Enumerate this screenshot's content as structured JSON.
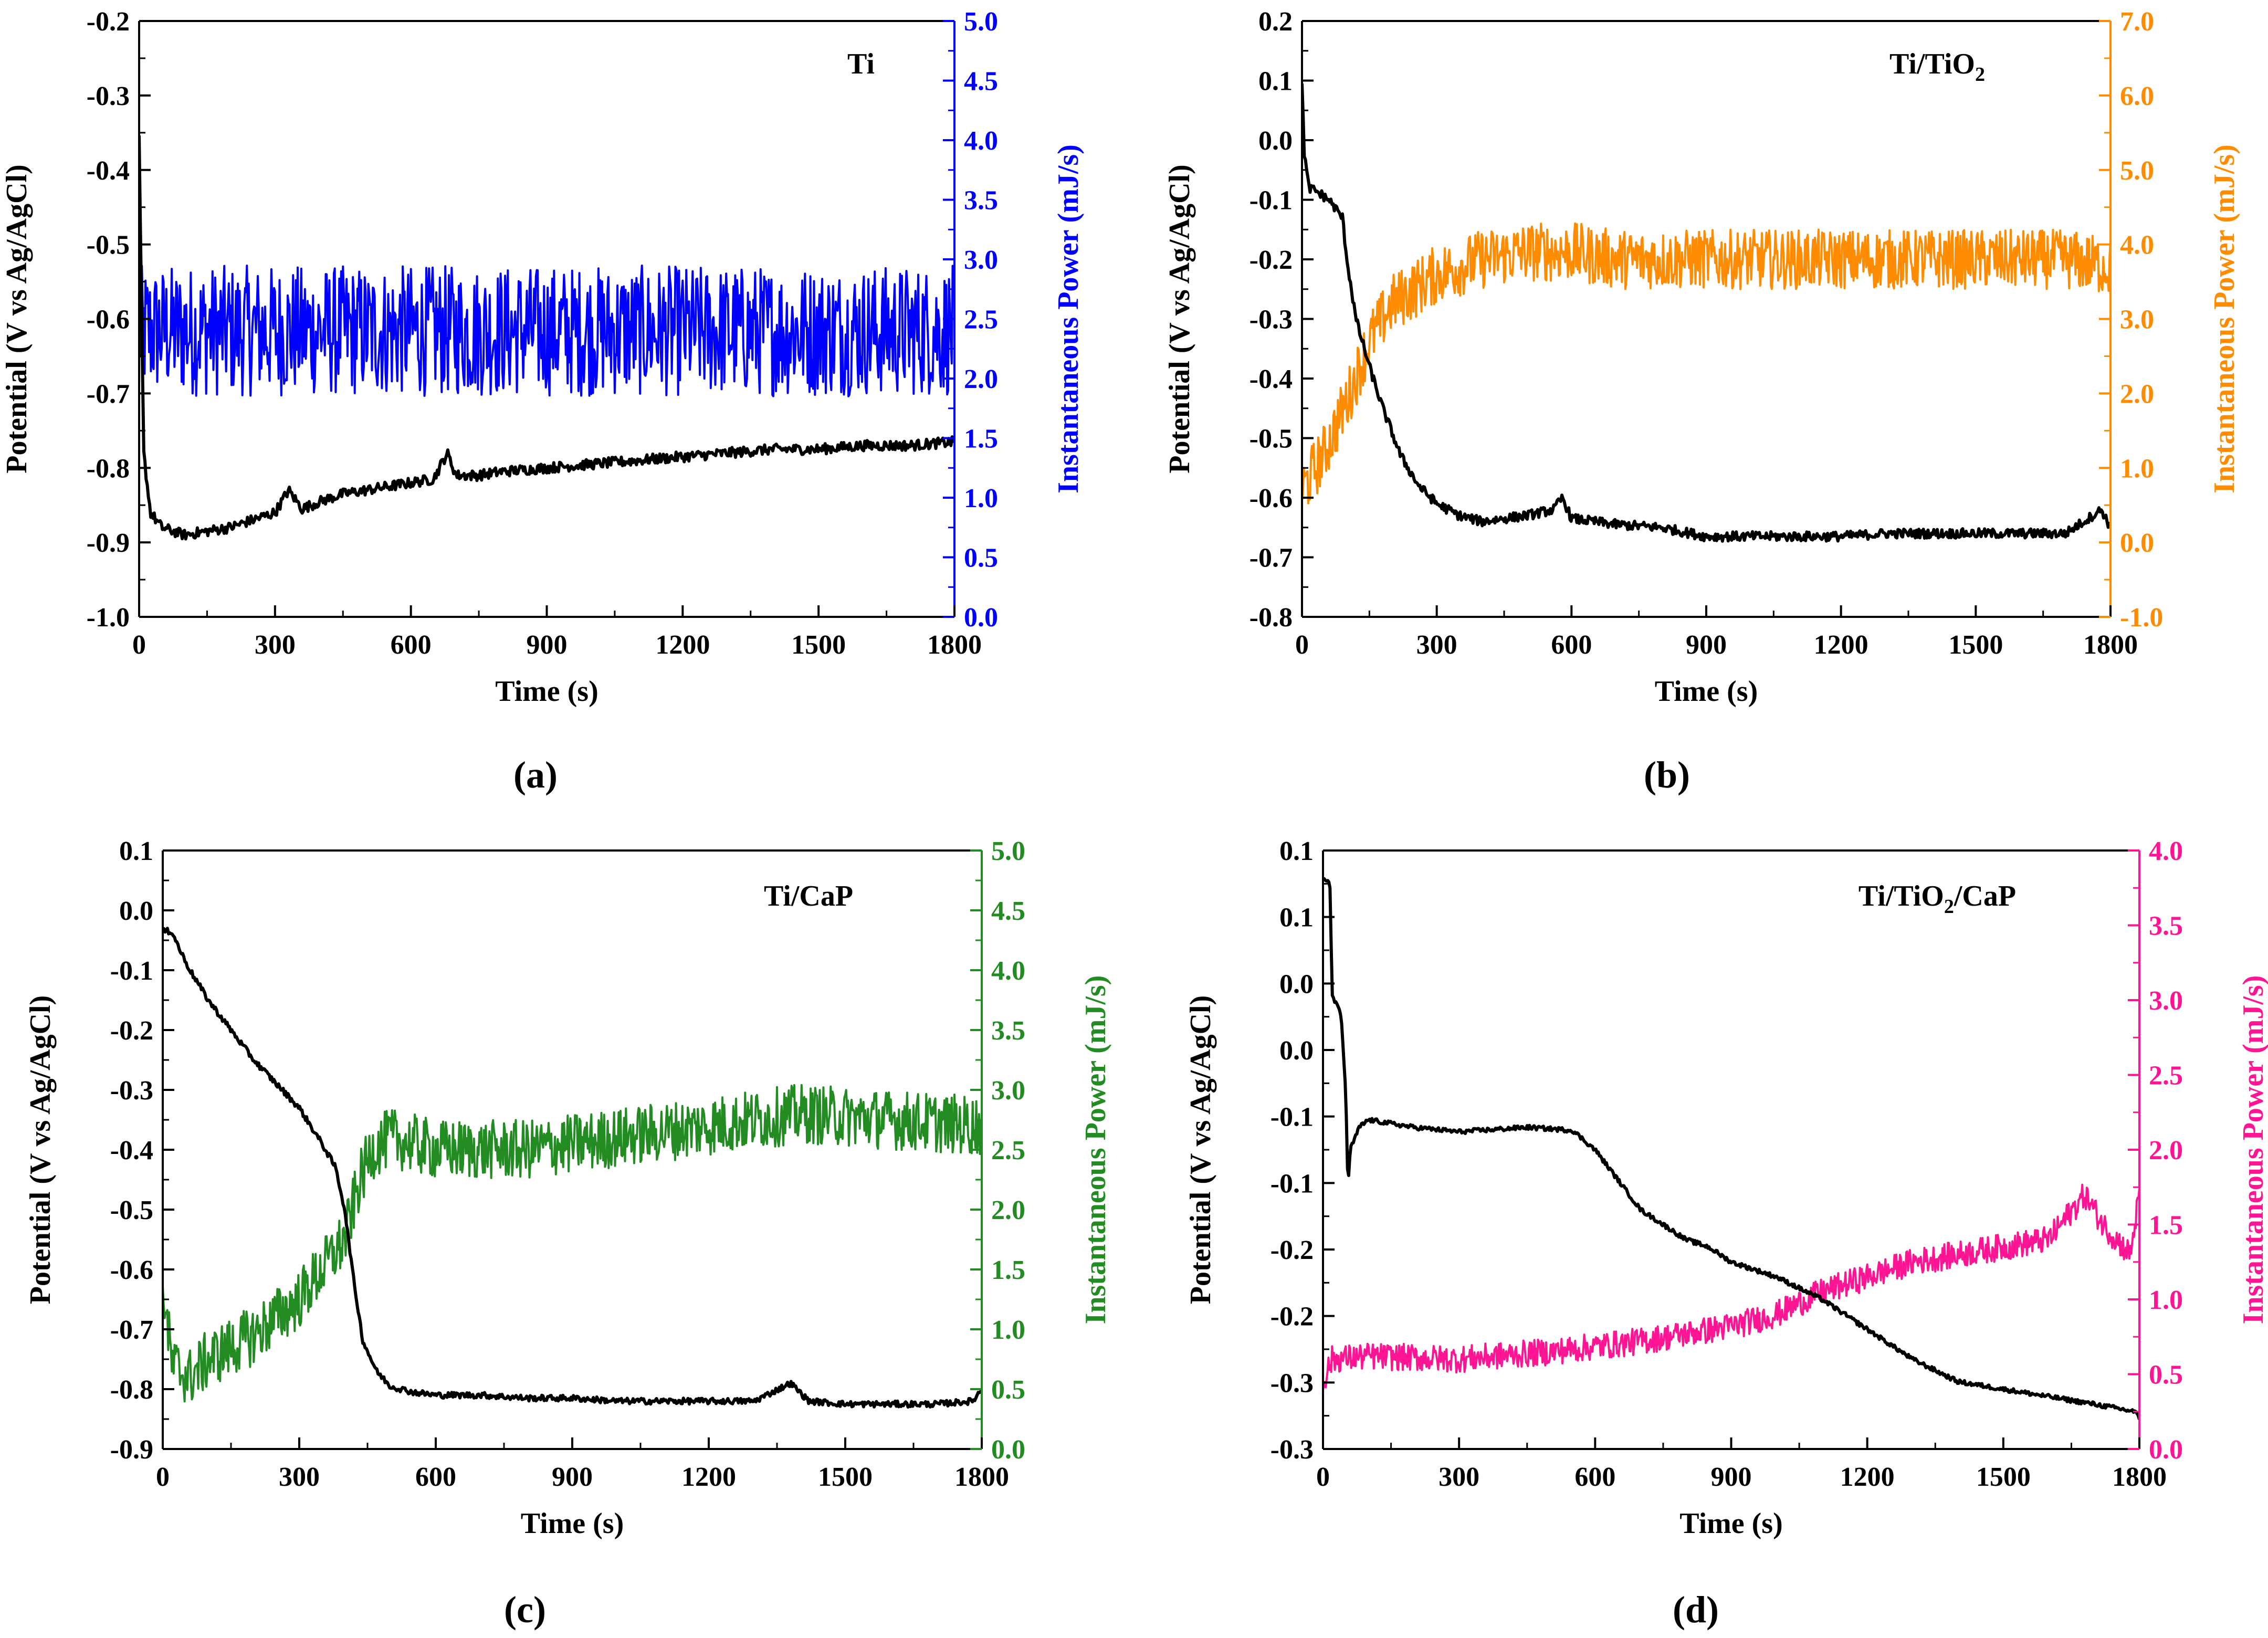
{
  "chart_data": [
    {
      "panel": "(a)",
      "type": "line",
      "sample_label": "Ti",
      "xlabel": "Time (s)",
      "ylabel_left": "Potential (V vs Ag/AgCl)",
      "ylabel_right": "Instantaneous Power (mJ/s)",
      "xlim": [
        0,
        1800
      ],
      "xticks": [
        "0",
        "300",
        "600",
        "900",
        "1200",
        "1500",
        "1800"
      ],
      "ylim_left": [
        -1.0,
        -0.2
      ],
      "yticks_left": [
        "-1.0",
        "-0.9",
        "-0.8",
        "-0.7",
        "-0.6",
        "-0.5",
        "-0.4",
        "-0.3",
        "-0.2"
      ],
      "ylim_right": [
        0.0,
        5.0
      ],
      "yticks_right": [
        "0.0",
        "0.5",
        "1.0",
        "1.5",
        "2.0",
        "2.5",
        "3.0",
        "3.5",
        "4.0",
        "4.5",
        "5.0"
      ],
      "right_color": "#0000ff",
      "series": [
        {
          "axis": "left",
          "color": "#000000",
          "x": [
            0,
            10,
            25,
            50,
            100,
            150,
            200,
            250,
            300,
            330,
            360,
            400,
            450,
            500,
            550,
            600,
            650,
            680,
            700,
            750,
            800,
            900,
            1000,
            1100,
            1200,
            1300,
            1400,
            1500,
            1600,
            1700,
            1800
          ],
          "y": [
            -0.36,
            -0.78,
            -0.86,
            -0.88,
            -0.89,
            -0.885,
            -0.88,
            -0.87,
            -0.86,
            -0.83,
            -0.855,
            -0.845,
            -0.835,
            -0.83,
            -0.825,
            -0.82,
            -0.815,
            -0.78,
            -0.81,
            -0.81,
            -0.805,
            -0.8,
            -0.795,
            -0.79,
            -0.785,
            -0.78,
            -0.775,
            -0.775,
            -0.77,
            -0.77,
            -0.765
          ],
          "noise": 0.007
        },
        {
          "axis": "right",
          "color": "#0000ff",
          "x": [
            0,
            100,
            300,
            600,
            900,
            1200,
            1500,
            1800
          ],
          "y": [
            2.4,
            2.4,
            2.4,
            2.4,
            2.4,
            2.4,
            2.4,
            2.4
          ],
          "noise": 0.55
        }
      ]
    },
    {
      "panel": "(b)",
      "type": "line",
      "sample_label": "Ti/TiO",
      "sample_sub": "2",
      "xlabel": "Time (s)",
      "ylabel_left": "Potential (V vs Ag/AgCl)",
      "ylabel_right": "Instantaneous Power (mJ/s)",
      "xlim": [
        0,
        1800
      ],
      "xticks": [
        "0",
        "300",
        "600",
        "900",
        "1200",
        "1500",
        "1800"
      ],
      "ylim_left": [
        -0.8,
        0.2
      ],
      "yticks_left": [
        "-0.8",
        "-0.7",
        "-0.6",
        "-0.5",
        "-0.4",
        "-0.3",
        "-0.2",
        "-0.1",
        "0.0",
        "0.1",
        "0.2"
      ],
      "ylim_right": [
        -1.0,
        7.0
      ],
      "yticks_right": [
        "-1.0",
        "0.0",
        "1.0",
        "2.0",
        "3.0",
        "4.0",
        "5.0",
        "6.0",
        "7.0"
      ],
      "right_color": "#ff8c00",
      "series": [
        {
          "axis": "left",
          "color": "#000000",
          "x": [
            0,
            5,
            15,
            30,
            60,
            90,
            100,
            120,
            150,
            180,
            220,
            260,
            300,
            350,
            400,
            500,
            560,
            580,
            600,
            700,
            800,
            900,
            1000,
            1100,
            1200,
            1300,
            1400,
            1500,
            1600,
            1700,
            1780,
            1800
          ],
          "y": [
            0.1,
            -0.02,
            -0.08,
            -0.085,
            -0.1,
            -0.13,
            -0.2,
            -0.3,
            -0.38,
            -0.45,
            -0.53,
            -0.58,
            -0.61,
            -0.63,
            -0.64,
            -0.63,
            -0.62,
            -0.6,
            -0.635,
            -0.645,
            -0.65,
            -0.665,
            -0.665,
            -0.665,
            -0.665,
            -0.66,
            -0.66,
            -0.66,
            -0.66,
            -0.66,
            -0.62,
            -0.65
          ],
          "noise": 0.008
        },
        {
          "axis": "right",
          "color": "#ff8c00",
          "x": [
            0,
            50,
            100,
            150,
            200,
            300,
            400,
            500,
            600,
            700,
            800,
            900,
            1000,
            1100,
            1200,
            1300,
            1400,
            1500,
            1600,
            1700,
            1800
          ],
          "y": [
            0.7,
            1.2,
            1.9,
            2.7,
            3.2,
            3.6,
            3.8,
            3.9,
            3.9,
            3.8,
            3.8,
            3.8,
            3.8,
            3.8,
            3.8,
            3.8,
            3.8,
            3.8,
            3.8,
            3.8,
            3.7
          ],
          "noise": 0.4
        }
      ]
    },
    {
      "panel": "(c)",
      "type": "line",
      "sample_label": "Ti/CaP",
      "xlabel": "Time (s)",
      "ylabel_left": "Potential (V vs Ag/AgCl)",
      "ylabel_right": "Instantaneous Power (mJ/s)",
      "xlim": [
        0,
        1800
      ],
      "xticks": [
        "0",
        "300",
        "600",
        "900",
        "1200",
        "1500",
        "1800"
      ],
      "ylim_left": [
        -0.9,
        0.1
      ],
      "yticks_left": [
        "-0.9",
        "-0.8",
        "-0.7",
        "-0.6",
        "-0.5",
        "-0.4",
        "-0.3",
        "-0.2",
        "-0.1",
        "0.0",
        "0.1"
      ],
      "ylim_right": [
        0.0,
        5.0
      ],
      "yticks_right": [
        "0.0",
        "0.5",
        "1.0",
        "1.5",
        "2.0",
        "2.5",
        "3.0",
        "3.5",
        "4.0",
        "4.5",
        "5.0"
      ],
      "right_color": "#228b22",
      "series": [
        {
          "axis": "left",
          "color": "#000000",
          "x": [
            0,
            20,
            40,
            60,
            100,
            150,
            200,
            250,
            300,
            350,
            380,
            400,
            420,
            440,
            470,
            500,
            550,
            600,
            700,
            800,
            900,
            1000,
            1100,
            1200,
            1300,
            1380,
            1420,
            1500,
            1600,
            1700,
            1780,
            1800
          ],
          "y": [
            -0.035,
            -0.035,
            -0.07,
            -0.1,
            -0.15,
            -0.2,
            -0.25,
            -0.29,
            -0.33,
            -0.39,
            -0.43,
            -0.5,
            -0.62,
            -0.72,
            -0.77,
            -0.795,
            -0.805,
            -0.81,
            -0.81,
            -0.815,
            -0.815,
            -0.82,
            -0.82,
            -0.82,
            -0.82,
            -0.79,
            -0.82,
            -0.825,
            -0.825,
            -0.825,
            -0.82,
            -0.8
          ],
          "noise": 0.005
        },
        {
          "axis": "right",
          "color": "#228b22",
          "x": [
            0,
            20,
            60,
            100,
            200,
            300,
            350,
            400,
            430,
            460,
            500,
            600,
            800,
            1000,
            1200,
            1400,
            1600,
            1800
          ],
          "y": [
            1.4,
            0.7,
            0.6,
            0.75,
            0.95,
            1.25,
            1.5,
            1.75,
            2.2,
            2.5,
            2.6,
            2.5,
            2.5,
            2.6,
            2.7,
            2.8,
            2.75,
            2.7
          ],
          "noise": 0.25
        }
      ]
    },
    {
      "panel": "(d)",
      "type": "line",
      "sample_label": "Ti/TiO",
      "sample_sub": "2",
      "sample_tail": "/CaP",
      "xlabel": "Time (s)",
      "ylabel_left": "Potential (V vs Ag/AgCl)",
      "ylabel_right": "Instantaneous Power (mJ/s)",
      "xlim": [
        0,
        1800
      ],
      "xticks": [
        "0",
        "300",
        "600",
        "900",
        "1200",
        "1500",
        "1800"
      ],
      "ylim_left": [
        -0.3,
        0.1
      ],
      "yticks_left": [
        "-0.3",
        "-0.3",
        "-0.2",
        "-0.2",
        "-0.1",
        "-0.1",
        "0.0",
        "0.0",
        "0.1",
        "0.1"
      ],
      "ylim_right": [
        0.0,
        4.0
      ],
      "yticks_right": [
        "0.0",
        "0.5",
        "1.0",
        "1.5",
        "2.0",
        "2.5",
        "3.0",
        "3.5",
        "4.0"
      ],
      "right_color": "#ff1493",
      "series": [
        {
          "axis": "left",
          "color": "#000000",
          "x": [
            0,
            15,
            20,
            25,
            40,
            50,
            55,
            60,
            80,
            100,
            200,
            300,
            400,
            450,
            550,
            600,
            650,
            700,
            800,
            850,
            900,
            1000,
            1100,
            1200,
            1300,
            1400,
            1500,
            1600,
            1700,
            1790,
            1800
          ],
          "y": [
            0.08,
            0.08,
            0.005,
            0.0,
            -0.01,
            -0.06,
            -0.125,
            -0.1,
            -0.085,
            -0.08,
            -0.085,
            -0.088,
            -0.086,
            -0.085,
            -0.087,
            -0.1,
            -0.12,
            -0.14,
            -0.16,
            -0.165,
            -0.175,
            -0.185,
            -0.2,
            -0.22,
            -0.24,
            -0.255,
            -0.26,
            -0.265,
            -0.27,
            -0.275,
            -0.28
          ],
          "noise": 0.0015
        },
        {
          "axis": "right",
          "color": "#ff1493",
          "x": [
            0,
            20,
            100,
            300,
            500,
            700,
            900,
            1000,
            1100,
            1200,
            1300,
            1400,
            1500,
            1600,
            1680,
            1720,
            1780,
            1800
          ],
          "y": [
            0.45,
            0.6,
            0.62,
            0.6,
            0.65,
            0.72,
            0.82,
            0.9,
            1.05,
            1.15,
            1.25,
            1.3,
            1.35,
            1.4,
            1.7,
            1.5,
            1.3,
            1.7
          ],
          "noise": 0.09
        }
      ]
    }
  ]
}
